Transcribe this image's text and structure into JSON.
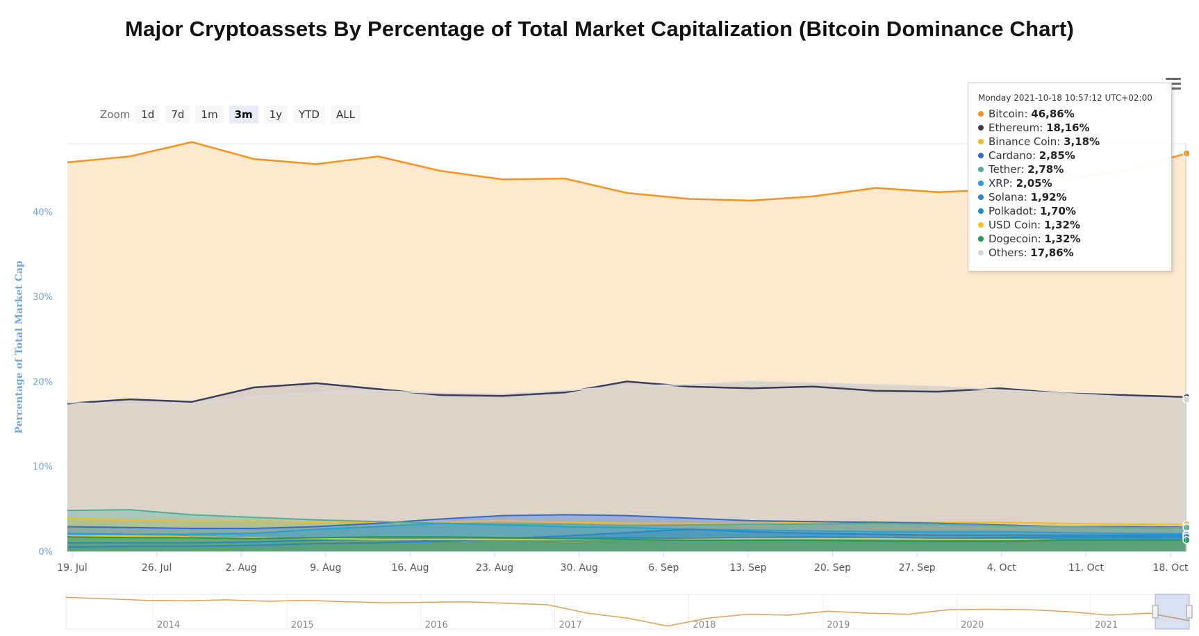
{
  "page": {
    "title": "Major Cryptoassets By Percentage of Total Market Capitalization (Bitcoin Dominance Chart)"
  },
  "zoom": {
    "label": "Zoom",
    "buttons": [
      "1d",
      "7d",
      "1m",
      "3m",
      "1y",
      "YTD",
      "ALL"
    ],
    "active": "3m"
  },
  "tooltip": {
    "date": "Monday 2021-10-18 10:57:12 UTC+02:00",
    "rows": [
      {
        "name": "Bitcoin",
        "value": "46,86%",
        "color": "#f7931a"
      },
      {
        "name": "Ethereum",
        "value": "18,16%",
        "color": "#3c3c5d"
      },
      {
        "name": "Binance Coin",
        "value": "3,18%",
        "color": "#f3ba2f"
      },
      {
        "name": "Cardano",
        "value": "2,85%",
        "color": "#3468d1"
      },
      {
        "name": "Tether",
        "value": "2,78%",
        "color": "#50af95"
      },
      {
        "name": "XRP",
        "value": "2,05%",
        "color": "#23a1d6"
      },
      {
        "name": "Solana",
        "value": "1,92%",
        "color": "#2a84c6"
      },
      {
        "name": "Polkadot",
        "value": "1,70%",
        "color": "#1f88c9"
      },
      {
        "name": "USD Coin",
        "value": "1,32%",
        "color": "#f2c230"
      },
      {
        "name": "Dogecoin",
        "value": "1,32%",
        "color": "#1e9a56"
      },
      {
        "name": "Others",
        "value": "17,86%",
        "color": "#d8d8d8"
      }
    ]
  },
  "chart_data": {
    "type": "area",
    "title": "Major Cryptoassets By Percentage of Total Market Capitalization (Bitcoin Dominance Chart)",
    "ylabel": "Percentage of Total Market Cap",
    "ylim": [
      0,
      48
    ],
    "yticks": [
      "0%",
      "10%",
      "20%",
      "30%",
      "40%"
    ],
    "xticks": [
      "19. Jul",
      "26. Jul",
      "2. Aug",
      "9. Aug",
      "16. Aug",
      "23. Aug",
      "30. Aug",
      "6. Sep",
      "13. Sep",
      "20. Sep",
      "27. Sep",
      "4. Oct",
      "11. Oct",
      "18. Oct"
    ],
    "x": [
      "2021-07-19",
      "2021-07-24",
      "2021-07-29",
      "2021-08-03",
      "2021-08-08",
      "2021-08-13",
      "2021-08-18",
      "2021-08-23",
      "2021-08-28",
      "2021-09-02",
      "2021-09-07",
      "2021-09-12",
      "2021-09-17",
      "2021-09-22",
      "2021-09-27",
      "2021-10-02",
      "2021-10-07",
      "2021-10-12",
      "2021-10-18"
    ],
    "series": [
      {
        "name": "Bitcoin",
        "color": "#f7931a",
        "values": [
          45.8,
          46.5,
          48.2,
          46.2,
          45.6,
          46.5,
          44.8,
          43.8,
          43.9,
          42.2,
          41.5,
          41.3,
          41.8,
          42.8,
          42.3,
          42.6,
          43.8,
          44.8,
          46.86
        ]
      },
      {
        "name": "Ethereum",
        "color": "#3c3c5d",
        "values": [
          17.4,
          17.9,
          17.6,
          19.3,
          19.8,
          19.1,
          18.4,
          18.3,
          18.7,
          20.0,
          19.4,
          19.2,
          19.4,
          18.9,
          18.8,
          19.2,
          18.6,
          18.4,
          18.16
        ]
      },
      {
        "name": "Others",
        "color": "#d8d8d8",
        "values": [
          17.5,
          17.3,
          17.4,
          18.2,
          18.7,
          18.9,
          18.6,
          18.5,
          18.9,
          19.5,
          19.6,
          20.0,
          19.8,
          19.6,
          19.4,
          19.0,
          18.6,
          18.2,
          17.86
        ]
      },
      {
        "name": "Binance Coin",
        "color": "#f3ba2f",
        "values": [
          3.9,
          3.7,
          3.6,
          3.6,
          3.4,
          3.4,
          3.4,
          3.6,
          3.4,
          3.3,
          3.3,
          3.3,
          3.4,
          3.5,
          3.4,
          3.4,
          3.3,
          3.2,
          3.18
        ]
      },
      {
        "name": "Cardano",
        "color": "#3468d1",
        "values": [
          2.9,
          2.8,
          2.7,
          2.7,
          2.9,
          3.3,
          3.8,
          4.2,
          4.3,
          4.2,
          3.9,
          3.6,
          3.5,
          3.4,
          3.3,
          3.1,
          2.9,
          2.9,
          2.85
        ]
      },
      {
        "name": "Tether",
        "color": "#50af95",
        "values": [
          4.8,
          4.9,
          4.3,
          4.0,
          3.7,
          3.5,
          3.3,
          3.2,
          3.2,
          3.0,
          3.1,
          3.2,
          3.2,
          3.3,
          3.2,
          3.0,
          2.9,
          2.8,
          2.78
        ]
      },
      {
        "name": "XRP",
        "color": "#23a1d6",
        "values": [
          2.1,
          2.0,
          2.0,
          2.1,
          2.6,
          2.9,
          3.3,
          3.1,
          2.9,
          2.8,
          2.6,
          2.5,
          2.4,
          2.3,
          2.3,
          2.3,
          2.2,
          2.1,
          2.05
        ]
      },
      {
        "name": "Solana",
        "color": "#2a84c6",
        "values": [
          0.5,
          0.6,
          0.6,
          0.7,
          0.9,
          1.0,
          1.2,
          1.5,
          1.8,
          2.2,
          2.6,
          2.3,
          2.1,
          2.0,
          1.9,
          1.9,
          1.9,
          1.9,
          1.92
        ]
      },
      {
        "name": "Polkadot",
        "color": "#1f88c9",
        "values": [
          1.0,
          1.0,
          1.0,
          1.1,
          1.3,
          1.4,
          1.3,
          1.4,
          1.5,
          1.6,
          1.5,
          1.6,
          1.7,
          1.6,
          1.5,
          1.6,
          1.7,
          1.7,
          1.7
        ]
      },
      {
        "name": "USD Coin",
        "color": "#f2c230",
        "values": [
          1.8,
          1.8,
          1.7,
          1.6,
          1.5,
          1.4,
          1.4,
          1.4,
          1.4,
          1.4,
          1.4,
          1.5,
          1.5,
          1.5,
          1.4,
          1.4,
          1.3,
          1.3,
          1.32
        ]
      },
      {
        "name": "Dogecoin",
        "color": "#1e9a56",
        "values": [
          1.7,
          1.6,
          1.6,
          1.5,
          1.6,
          1.7,
          1.7,
          1.6,
          1.5,
          1.4,
          1.3,
          1.3,
          1.3,
          1.2,
          1.2,
          1.2,
          1.3,
          1.3,
          1.32
        ]
      }
    ],
    "navigator": {
      "years": [
        "2014",
        "2015",
        "2016",
        "2017",
        "2018",
        "2019",
        "2020",
        "2021"
      ],
      "values": [
        94,
        91,
        88,
        87,
        89,
        86,
        88,
        85,
        83,
        84,
        85,
        82,
        79,
        62,
        52,
        36,
        52,
        60,
        58,
        66,
        62,
        60,
        69,
        70,
        69,
        65,
        58,
        62,
        47
      ],
      "ylim": [
        30,
        100
      ]
    },
    "legend": "tooltip top-right",
    "grid": true
  }
}
